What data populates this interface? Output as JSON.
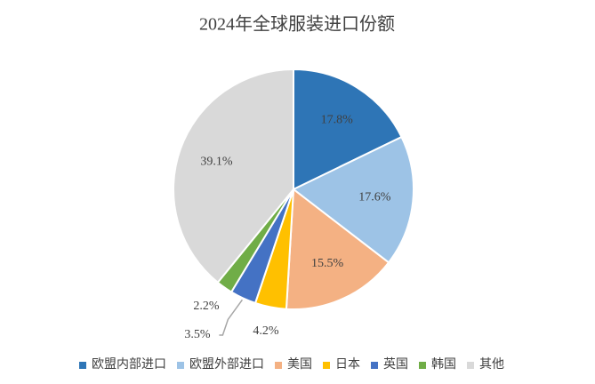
{
  "chart_data": {
    "type": "pie",
    "title": "2024年全球服装进口份额",
    "categories": [
      "欧盟内部进口",
      "欧盟外部进口",
      "美国",
      "日本",
      "英国",
      "韩国",
      "其他"
    ],
    "values": [
      17.8,
      17.6,
      15.5,
      4.2,
      3.5,
      2.2,
      39.1
    ],
    "value_labels": [
      "17.8%",
      "17.6%",
      "15.5%",
      "4.2%",
      "3.5%",
      "2.2%",
      "39.1%"
    ],
    "colors": [
      "#2e75b6",
      "#9dc3e6",
      "#f4b183",
      "#ffc000",
      "#4472c4",
      "#70ad47",
      "#d9d9d9"
    ],
    "legend": "bottom"
  }
}
